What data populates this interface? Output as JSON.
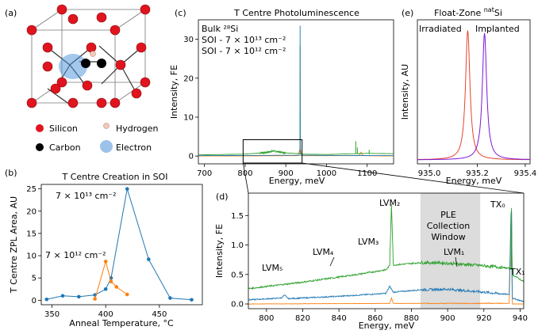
{
  "colors": {
    "blue": "#1f77b4",
    "orange": "#ff7f0e",
    "green": "#2ca02c",
    "red": "#e8432e",
    "purple": "#7b18d8",
    "silicon": "#e0141e",
    "shade": "#dcdcdc"
  },
  "panel_labels": {
    "a": "(a)",
    "b": "(b)",
    "c": "(c)",
    "d": "(d)",
    "e": "(e)"
  },
  "structure_legend": {
    "silicon": "Silicon",
    "carbon": "Carbon",
    "hydrogen": "Hydrogen",
    "electron": "Electron"
  },
  "chart_data": [
    {
      "panel": "(b)",
      "type": "line",
      "title": "T Centre Creation in SOI",
      "xlabel": "Anneal Temperature, °C",
      "ylabel": "T Centre ZPL Area, AU",
      "xlim": [
        340,
        490
      ],
      "ylim": [
        -1,
        26
      ],
      "xticks": [
        "350",
        "400",
        "450"
      ],
      "yticks": [
        "0",
        "5",
        "10",
        "15",
        "20",
        "25"
      ],
      "series": [
        {
          "name": "7 × 10¹³ cm⁻²",
          "color": "#1f77b4",
          "points": [
            [
              345,
              0.2
            ],
            [
              360,
              1.0
            ],
            [
              375,
              0.8
            ],
            [
              390,
              1.2
            ],
            [
              400,
              2.5
            ],
            [
              405,
              5.0
            ],
            [
              420,
              25.0
            ],
            [
              440,
              9.2
            ],
            [
              460,
              0.5
            ],
            [
              480,
              0.1
            ]
          ]
        },
        {
          "name": "7 × 10¹² cm⁻²",
          "color": "#ff7f0e",
          "points": [
            [
              390,
              0.3
            ],
            [
              400,
              8.7
            ],
            [
              405,
              4.2
            ],
            [
              410,
              3.0
            ],
            [
              420,
              1.3
            ]
          ]
        }
      ],
      "annotations": [
        "7 × 10¹³ cm⁻²",
        "7 × 10¹² cm⁻²"
      ]
    },
    {
      "panel": "(c)",
      "type": "line",
      "title": "T Centre Photoluminescence",
      "xlabel": "Energy, meV",
      "ylabel": "Intensity, FE",
      "xlim": [
        685,
        1165
      ],
      "ylim": [
        -2,
        35
      ],
      "xticks": [
        "700",
        "800",
        "900",
        "1000",
        "1100"
      ],
      "yticks": [
        "0",
        "10",
        "20",
        "30"
      ],
      "legend": [
        "Bulk ²⁸Si",
        "SOI - 7 × 10¹³ cm⁻²",
        "SOI - 7 × 10¹² cm⁻²"
      ],
      "legend_placement": "top-left",
      "series": [
        {
          "name": "Bulk ²⁸Si",
          "color": "#2ca02c",
          "points": [
            [
              685,
              0.3
            ],
            [
              800,
              0.5
            ],
            [
              850,
              0.9
            ],
            [
              870,
              1.3
            ],
            [
              900,
              0.8
            ],
            [
              935.1,
              0.6
            ],
            [
              935.2,
              28.5
            ],
            [
              935.4,
              0.5
            ],
            [
              1000,
              0.4
            ],
            [
              1100,
              0.7
            ],
            [
              1165,
              0.6
            ]
          ]
        },
        {
          "name": "SOI - 7 × 10¹³ cm⁻²",
          "color": "#1f77b4",
          "points": [
            [
              685,
              0.1
            ],
            [
              900,
              0.2
            ],
            [
              935.1,
              0.2
            ],
            [
              935.2,
              33.5
            ],
            [
              935.4,
              0.2
            ],
            [
              1165,
              0.1
            ]
          ]
        },
        {
          "name": "SOI - 7 × 10¹² cm⁻²",
          "color": "#ff7f0e",
          "points": [
            [
              685,
              0.0
            ],
            [
              930,
              0.1
            ],
            [
              935.2,
              2.0
            ],
            [
              940,
              0.1
            ],
            [
              1080,
              0.1
            ],
            [
              1085,
              1.0
            ],
            [
              1090,
              0.1
            ],
            [
              1165,
              0.0
            ]
          ]
        }
      ],
      "zoom_box": [
        795,
        940
      ]
    },
    {
      "panel": "(d)",
      "type": "line",
      "xlabel": "Energy, meV",
      "ylabel": "Intensity, FE",
      "xlim": [
        790,
        942
      ],
      "ylim": [
        -0.08,
        1.88
      ],
      "xticks": [
        "800",
        "820",
        "840",
        "860",
        "880",
        "900",
        "920",
        "940"
      ],
      "yticks": [
        "0.0",
        "0.5",
        "1.0",
        "1.5"
      ],
      "shaded_region": {
        "x": [
          885,
          918
        ],
        "label": [
          "PLE",
          "Collection",
          "Window"
        ]
      },
      "series": [
        {
          "name": "Bulk ²⁸Si",
          "color": "#2ca02c",
          "points": [
            [
              790,
              0.26
            ],
            [
              820,
              0.37
            ],
            [
              850,
              0.5
            ],
            [
              866,
              0.58
            ],
            [
              868,
              0.65
            ],
            [
              869,
              1.7
            ],
            [
              870,
              0.66
            ],
            [
              885,
              0.7
            ],
            [
              895,
              0.7
            ],
            [
              915,
              0.66
            ],
            [
              930,
              0.62
            ],
            [
              935,
              0.6
            ],
            [
              935.2,
              1.8
            ],
            [
              935.6,
              0.5
            ],
            [
              942,
              0.38
            ]
          ]
        },
        {
          "name": "SOI - 7 × 10¹³ cm⁻²",
          "color": "#1f77b4",
          "points": [
            [
              790,
              0.07
            ],
            [
              808,
              0.1
            ],
            [
              810,
              0.15
            ],
            [
              812,
              0.09
            ],
            [
              840,
              0.13
            ],
            [
              866,
              0.18
            ],
            [
              868,
              0.3
            ],
            [
              870,
              0.2
            ],
            [
              885,
              0.24
            ],
            [
              900,
              0.25
            ],
            [
              920,
              0.2
            ],
            [
              934,
              0.16
            ],
            [
              935.2,
              1.8
            ],
            [
              935.6,
              0.1
            ],
            [
              942,
              0.04
            ]
          ]
        },
        {
          "name": "SOI - 7 × 10¹² cm⁻²",
          "color": "#ff7f0e",
          "points": [
            [
              790,
              0.0
            ],
            [
              868,
              0.01
            ],
            [
              869,
              0.1
            ],
            [
              870,
              0.01
            ],
            [
              934,
              0.01
            ],
            [
              935.2,
              1.8
            ],
            [
              935.6,
              0.0
            ],
            [
              942,
              0.0
            ]
          ]
        }
      ],
      "annotations": [
        "LVM₁",
        "LVM₂",
        "LVM₃",
        "LVM₄",
        "LVM₅",
        "TX₀",
        "TX₁"
      ]
    },
    {
      "panel": "(e)",
      "type": "line",
      "title": "Float-Zone ^natSi",
      "xlabel": "Energy, meV",
      "ylabel": "Intensity, AU",
      "xlim": [
        934.95,
        935.42
      ],
      "ylim": [
        0,
        1.08
      ],
      "xticks": [
        "935.0",
        "935.2",
        "935.4"
      ],
      "series": [
        {
          "name": "Irradiated",
          "color": "#e8432e",
          "center": 935.16,
          "width": 0.011,
          "peak": 1.0
        },
        {
          "name": "Implanted",
          "color": "#7b18d8",
          "center": 935.23,
          "width": 0.011,
          "peak": 0.98
        }
      ],
      "legend": [
        "Irradiated",
        "Implanted"
      ]
    }
  ]
}
